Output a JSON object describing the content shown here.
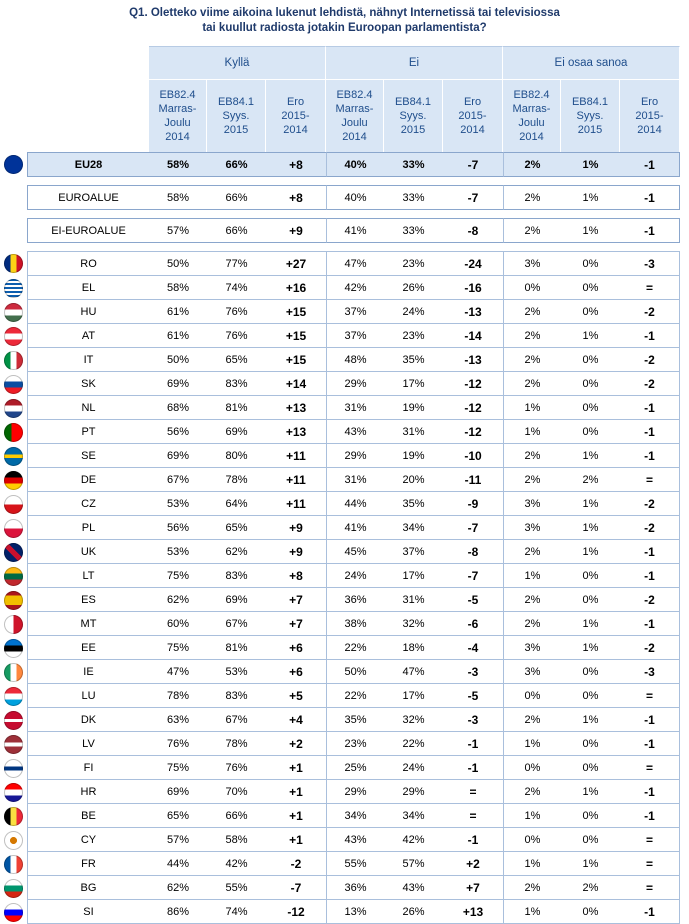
{
  "title_line1": "Q1. Oletteko viime aikoina lukenut lehdistä, nähnyt Internetissä tai televisiossa",
  "title_line2": "tai kuullut radiosta jotakin Euroopan parlamentista?",
  "groups": [
    "Kyllä",
    "Ei",
    "Ei osaa sanoa"
  ],
  "subheaders": [
    [
      "EB82.4",
      "Marras-",
      "Joulu",
      "2014"
    ],
    [
      "EB84.1",
      "Syys.",
      "2015"
    ],
    [
      "Ero",
      "2015-",
      "2014"
    ]
  ],
  "eu": {
    "name": "EU28",
    "v": [
      "58%",
      "66%",
      "+8",
      "40%",
      "33%",
      "-7",
      "2%",
      "1%",
      "-1"
    ],
    "flag": "eu"
  },
  "aggregates": [
    {
      "name": "EUROALUE",
      "v": [
        "58%",
        "66%",
        "+8",
        "40%",
        "33%",
        "-7",
        "2%",
        "1%",
        "-1"
      ]
    },
    {
      "name": "EI-EUROALUE",
      "v": [
        "57%",
        "66%",
        "+9",
        "41%",
        "33%",
        "-8",
        "2%",
        "1%",
        "-1"
      ]
    }
  ],
  "countries": [
    {
      "name": "RO",
      "flag": "ro",
      "v": [
        "50%",
        "77%",
        "+27",
        "47%",
        "23%",
        "-24",
        "3%",
        "0%",
        "-3"
      ]
    },
    {
      "name": "EL",
      "flag": "el",
      "v": [
        "58%",
        "74%",
        "+16",
        "42%",
        "26%",
        "-16",
        "0%",
        "0%",
        "="
      ]
    },
    {
      "name": "HU",
      "flag": "hu",
      "v": [
        "61%",
        "76%",
        "+15",
        "37%",
        "24%",
        "-13",
        "2%",
        "0%",
        "-2"
      ]
    },
    {
      "name": "AT",
      "flag": "at",
      "v": [
        "61%",
        "76%",
        "+15",
        "37%",
        "23%",
        "-14",
        "2%",
        "1%",
        "-1"
      ]
    },
    {
      "name": "IT",
      "flag": "it",
      "v": [
        "50%",
        "65%",
        "+15",
        "48%",
        "35%",
        "-13",
        "2%",
        "0%",
        "-2"
      ]
    },
    {
      "name": "SK",
      "flag": "sk",
      "v": [
        "69%",
        "83%",
        "+14",
        "29%",
        "17%",
        "-12",
        "2%",
        "0%",
        "-2"
      ]
    },
    {
      "name": "NL",
      "flag": "nl",
      "v": [
        "68%",
        "81%",
        "+13",
        "31%",
        "19%",
        "-12",
        "1%",
        "0%",
        "-1"
      ]
    },
    {
      "name": "PT",
      "flag": "pt",
      "v": [
        "56%",
        "69%",
        "+13",
        "43%",
        "31%",
        "-12",
        "1%",
        "0%",
        "-1"
      ]
    },
    {
      "name": "SE",
      "flag": "se",
      "v": [
        "69%",
        "80%",
        "+11",
        "29%",
        "19%",
        "-10",
        "2%",
        "1%",
        "-1"
      ]
    },
    {
      "name": "DE",
      "flag": "de",
      "v": [
        "67%",
        "78%",
        "+11",
        "31%",
        "20%",
        "-11",
        "2%",
        "2%",
        "="
      ]
    },
    {
      "name": "CZ",
      "flag": "cz",
      "v": [
        "53%",
        "64%",
        "+11",
        "44%",
        "35%",
        "-9",
        "3%",
        "1%",
        "-2"
      ]
    },
    {
      "name": "PL",
      "flag": "pl",
      "v": [
        "56%",
        "65%",
        "+9",
        "41%",
        "34%",
        "-7",
        "3%",
        "1%",
        "-2"
      ]
    },
    {
      "name": "UK",
      "flag": "uk",
      "v": [
        "53%",
        "62%",
        "+9",
        "45%",
        "37%",
        "-8",
        "2%",
        "1%",
        "-1"
      ]
    },
    {
      "name": "LT",
      "flag": "lt",
      "v": [
        "75%",
        "83%",
        "+8",
        "24%",
        "17%",
        "-7",
        "1%",
        "0%",
        "-1"
      ]
    },
    {
      "name": "ES",
      "flag": "es",
      "v": [
        "62%",
        "69%",
        "+7",
        "36%",
        "31%",
        "-5",
        "2%",
        "0%",
        "-2"
      ]
    },
    {
      "name": "MT",
      "flag": "mt",
      "v": [
        "60%",
        "67%",
        "+7",
        "38%",
        "32%",
        "-6",
        "2%",
        "1%",
        "-1"
      ]
    },
    {
      "name": "EE",
      "flag": "ee",
      "v": [
        "75%",
        "81%",
        "+6",
        "22%",
        "18%",
        "-4",
        "3%",
        "1%",
        "-2"
      ]
    },
    {
      "name": "IE",
      "flag": "ie",
      "v": [
        "47%",
        "53%",
        "+6",
        "50%",
        "47%",
        "-3",
        "3%",
        "0%",
        "-3"
      ]
    },
    {
      "name": "LU",
      "flag": "lu",
      "v": [
        "78%",
        "83%",
        "+5",
        "22%",
        "17%",
        "-5",
        "0%",
        "0%",
        "="
      ]
    },
    {
      "name": "DK",
      "flag": "dk",
      "v": [
        "63%",
        "67%",
        "+4",
        "35%",
        "32%",
        "-3",
        "2%",
        "1%",
        "-1"
      ]
    },
    {
      "name": "LV",
      "flag": "lv",
      "v": [
        "76%",
        "78%",
        "+2",
        "23%",
        "22%",
        "-1",
        "1%",
        "0%",
        "-1"
      ]
    },
    {
      "name": "FI",
      "flag": "fi",
      "v": [
        "75%",
        "76%",
        "+1",
        "25%",
        "24%",
        "-1",
        "0%",
        "0%",
        "="
      ]
    },
    {
      "name": "HR",
      "flag": "hr",
      "v": [
        "69%",
        "70%",
        "+1",
        "29%",
        "29%",
        "=",
        "2%",
        "1%",
        "-1"
      ]
    },
    {
      "name": "BE",
      "flag": "be",
      "v": [
        "65%",
        "66%",
        "+1",
        "34%",
        "34%",
        "=",
        "1%",
        "0%",
        "-1"
      ]
    },
    {
      "name": "CY",
      "flag": "cy",
      "v": [
        "57%",
        "58%",
        "+1",
        "43%",
        "42%",
        "-1",
        "0%",
        "0%",
        "="
      ]
    },
    {
      "name": "FR",
      "flag": "fr",
      "v": [
        "44%",
        "42%",
        "-2",
        "55%",
        "57%",
        "+2",
        "1%",
        "1%",
        "="
      ]
    },
    {
      "name": "BG",
      "flag": "bg",
      "v": [
        "62%",
        "55%",
        "-7",
        "36%",
        "43%",
        "+7",
        "2%",
        "2%",
        "="
      ]
    },
    {
      "name": "SI",
      "flag": "si",
      "v": [
        "86%",
        "74%",
        "-12",
        "13%",
        "26%",
        "+13",
        "1%",
        "0%",
        "-1"
      ]
    }
  ],
  "flag_styles": {
    "eu": "radial-gradient(circle, #003399 55%, #003399 100%)",
    "ro": "linear-gradient(90deg,#002b7f 33%,#fcd116 33%,#fcd116 66%,#ce1126 66%)",
    "el": "repeating-linear-gradient(180deg,#0d5eaf 0 2px,#ffffff 2px 4px)",
    "hu": "linear-gradient(180deg,#cd2a3e 33%,#ffffff 33%,#ffffff 66%,#436f4d 66%)",
    "at": "linear-gradient(180deg,#ed2939 33%,#ffffff 33%,#ffffff 66%,#ed2939 66%)",
    "it": "linear-gradient(90deg,#009246 33%,#ffffff 33%,#ffffff 66%,#ce2b37 66%)",
    "sk": "linear-gradient(180deg,#ffffff 33%,#0b4ea2 33%,#0b4ea2 66%,#ee1c25 66%)",
    "nl": "linear-gradient(180deg,#ae1c28 33%,#ffffff 33%,#ffffff 66%,#21468b 66%)",
    "pt": "linear-gradient(90deg,#006600 40%,#ff0000 40%)",
    "se": "linear-gradient(180deg,#006aa7 40%,#fecc00 40%,#fecc00 58%,#006aa7 58%)",
    "de": "linear-gradient(180deg,#000000 33%,#dd0000 33%,#dd0000 66%,#ffce00 66%)",
    "cz": "linear-gradient(180deg,#ffffff 50%,#d7141a 50%)",
    "pl": "linear-gradient(180deg,#ffffff 50%,#dc143c 50%)",
    "uk": "linear-gradient(45deg,#012169 40%,#c8102e 40%,#c8102e 60%,#012169 60%)",
    "lt": "linear-gradient(180deg,#fdb913 33%,#006a44 33%,#006a44 66%,#c1272d 66%)",
    "es": "linear-gradient(180deg,#aa151b 25%,#f1bf00 25%,#f1bf00 75%,#aa151b 75%)",
    "mt": "linear-gradient(90deg,#ffffff 50%,#cf142b 50%)",
    "ee": "linear-gradient(180deg,#0072ce 33%,#000000 33%,#000000 66%,#ffffff 66%)",
    "ie": "linear-gradient(90deg,#169b62 33%,#ffffff 33%,#ffffff 66%,#ff883e 66%)",
    "lu": "linear-gradient(180deg,#ed2939 33%,#ffffff 33%,#ffffff 66%,#00a1de 66%)",
    "dk": "linear-gradient(180deg,#c60c30 42%,#ffffff 42%,#ffffff 58%,#c60c30 58%)",
    "lv": "linear-gradient(180deg,#9e3039 40%,#ffffff 40%,#ffffff 60%,#9e3039 60%)",
    "fi": "linear-gradient(180deg,#ffffff 40%,#003580 40%,#003580 60%,#ffffff 60%)",
    "hr": "linear-gradient(180deg,#ff0000 33%,#ffffff 33%,#ffffff 66%,#171796 66%)",
    "be": "linear-gradient(90deg,#000000 33%,#fae042 33%,#fae042 66%,#ed2939 66%)",
    "cy": "radial-gradient(circle,#d57800 25%,#ffffff 27%)",
    "fr": "linear-gradient(90deg,#0055a4 33%,#ffffff 33%,#ffffff 66%,#ef4135 66%)",
    "bg": "linear-gradient(180deg,#ffffff 33%,#00966e 33%,#00966e 66%,#d62612 66%)",
    "si": "linear-gradient(180deg,#ffffff 33%,#0000ff 33%,#0000ff 66%,#ff0000 66%)"
  }
}
